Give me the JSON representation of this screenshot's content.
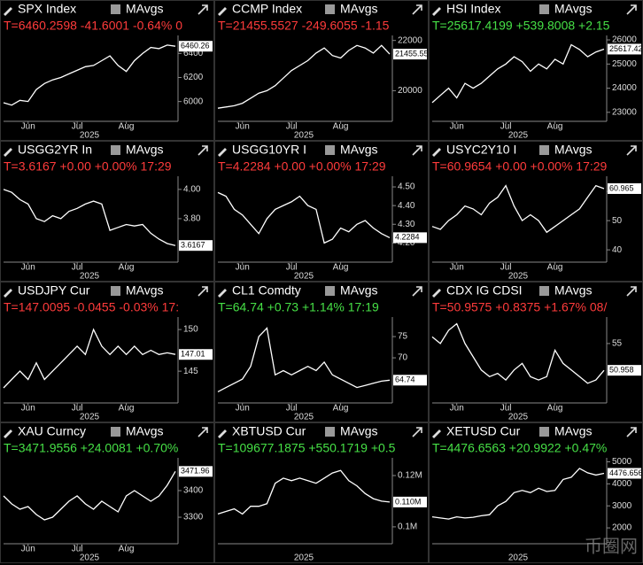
{
  "chart_data": [
    {
      "type": "line",
      "title": "SPX Index",
      "legend_label": "MAvgs",
      "quote": "T=6460.2598 -41.6001 -0.64% 0",
      "quote_color": "#ff3b3b",
      "color": "#ffffff",
      "xlabel": "2025",
      "categories": [
        null,
        null,
        null,
        "Jun",
        null,
        null,
        null,
        null,
        null,
        "Jul",
        null,
        null,
        null,
        null,
        null,
        "Aug",
        null,
        null,
        null,
        null,
        null,
        null
      ],
      "values": [
        5990,
        5970,
        6010,
        6000,
        6100,
        6150,
        6180,
        6200,
        6230,
        6260,
        6290,
        6300,
        6340,
        6380,
        6300,
        6250,
        6340,
        6400,
        6450,
        6440,
        6470,
        6460
      ],
      "ylim": [
        5850,
        6550
      ],
      "yticks": [
        6000,
        6200,
        6400
      ],
      "last_label": "6460.26"
    },
    {
      "type": "line",
      "title": "CCMP Index",
      "legend_label": "MAvgs",
      "quote": "T=21455.5527 -249.6055 -1.15",
      "quote_color": "#ff3b3b",
      "color": "#ffffff",
      "xlabel": "2025",
      "categories": [
        null,
        null,
        null,
        "Jun",
        null,
        null,
        null,
        null,
        null,
        "Jul",
        null,
        null,
        null,
        null,
        null,
        "Aug",
        null,
        null,
        null,
        null,
        null,
        null
      ],
      "values": [
        19300,
        19350,
        19400,
        19500,
        19700,
        19900,
        20000,
        20200,
        20500,
        20800,
        21000,
        21200,
        21500,
        21700,
        21400,
        21300,
        21600,
        21800,
        21700,
        21500,
        21800,
        21455.5527
      ],
      "ylim": [
        18850,
        22200
      ],
      "yticks": [
        {
          "value": 20000,
          "label": "20000"
        },
        {
          "value": 22000,
          "label": "22000"
        }
      ],
      "last_label": "21455.55"
    },
    {
      "type": "line",
      "title": "HSI Index",
      "legend_label": "MAvgs",
      "quote": "T=25617.4199 +539.8008 +2.15",
      "quote_color": "#46e046",
      "color": "#ffffff",
      "xlabel": "2025",
      "categories": [
        null,
        null,
        null,
        "Jun",
        null,
        null,
        null,
        null,
        null,
        "Jul",
        null,
        null,
        null,
        null,
        null,
        "Aug",
        null,
        null,
        null,
        null,
        null,
        null
      ],
      "values": [
        23400,
        23700,
        24000,
        23600,
        24200,
        24000,
        24200,
        24500,
        24800,
        25000,
        25300,
        25100,
        24700,
        25000,
        24800,
        25200,
        25000,
        25800,
        25600,
        25300,
        25500,
        25617.4199
      ],
      "ylim": [
        22700,
        26185
      ],
      "yticks": [
        23000,
        24000,
        25000,
        26000
      ],
      "last_label": "25617.42"
    },
    {
      "type": "line",
      "title": "USGG2YR In",
      "legend_label": "MAvgs",
      "quote": "T=3.6167 +0.00 +0.00% 17:29",
      "quote_color": "#ff3b3b",
      "color": "#ffffff",
      "xlabel": "2025",
      "categories": [
        null,
        null,
        null,
        "Jun",
        null,
        null,
        null,
        null,
        null,
        "Jul",
        null,
        null,
        null,
        null,
        null,
        "Aug",
        null,
        null,
        null,
        null,
        null,
        null
      ],
      "values": [
        4.0,
        3.98,
        3.93,
        3.9,
        3.8,
        3.78,
        3.82,
        3.8,
        3.85,
        3.87,
        3.9,
        3.92,
        3.9,
        3.72,
        3.74,
        3.76,
        3.75,
        3.76,
        3.7,
        3.66,
        3.63,
        3.6167
      ],
      "ylim": [
        3.515,
        4.09
      ],
      "yticks": [
        {
          "value": 3.8,
          "label": "3.80"
        },
        {
          "value": 4,
          "label": "4.00"
        }
      ],
      "last_label": "3.6167"
    },
    {
      "type": "line",
      "title": "USGG10YR I",
      "legend_label": "MAvgs",
      "quote": "T=4.2284 +0.00 +0.00% 17:29",
      "quote_color": "#ff3b3b",
      "color": "#ffffff",
      "xlabel": "2025",
      "categories": [
        null,
        null,
        null,
        "Jun",
        null,
        null,
        null,
        null,
        null,
        "Jul",
        null,
        null,
        null,
        null,
        null,
        "Aug",
        null,
        null,
        null,
        null,
        null,
        null
      ],
      "values": [
        4.47,
        4.45,
        4.38,
        4.35,
        4.3,
        4.25,
        4.33,
        4.38,
        4.4,
        4.42,
        4.45,
        4.4,
        4.38,
        4.2,
        4.22,
        4.28,
        4.26,
        4.3,
        4.32,
        4.28,
        4.25,
        4.2284
      ],
      "ylim": [
        4.107,
        4.557
      ],
      "yticks": [
        {
          "value": 4.2,
          "label": "4.20"
        },
        {
          "value": 4.3,
          "label": "4.30"
        },
        {
          "value": 4.4,
          "label": "4.40"
        },
        {
          "value": 4.5,
          "label": "4.50"
        }
      ],
      "last_label": "4.2284"
    },
    {
      "type": "line",
      "title": "USYC2Y10 I",
      "legend_label": "MAvgs",
      "quote": "T=60.9654 +0.00 +0.00% 17:29",
      "quote_color": "#ff3b3b",
      "color": "#ffffff",
      "xlabel": "2025",
      "categories": [
        null,
        null,
        null,
        "Jun",
        null,
        null,
        null,
        null,
        null,
        "Jul",
        null,
        null,
        null,
        null,
        null,
        "Aug",
        null,
        null,
        null,
        null,
        null,
        null
      ],
      "values": [
        48,
        47,
        50,
        52,
        55,
        54,
        52,
        56,
        58,
        62,
        55,
        50,
        52,
        50,
        46,
        48,
        50,
        52,
        54,
        58,
        62,
        60.9654
      ],
      "ylim": [
        36.4,
        65.2
      ],
      "yticks": [
        40,
        50,
        60
      ],
      "last_label": "60.965"
    },
    {
      "type": "line",
      "title": "USDJPY Cur",
      "legend_label": "MAvgs",
      "quote": "T=147.0095 -0.0455 -0.03% 17:",
      "quote_color": "#ff3b3b",
      "color": "#ffffff",
      "xlabel": "2025",
      "categories": [
        null,
        null,
        null,
        "Jun",
        null,
        null,
        null,
        null,
        null,
        "Jul",
        null,
        null,
        null,
        null,
        null,
        "Aug",
        null,
        null,
        null,
        null,
        null,
        null
      ],
      "values": [
        143,
        144,
        145,
        144,
        146,
        144,
        145,
        146,
        147,
        148,
        147,
        150,
        148,
        147,
        148,
        147,
        148,
        147,
        147.5,
        147,
        147.2,
        147.0095
      ],
      "ylim": [
        141.4,
        151.5
      ],
      "yticks": [
        145,
        150
      ],
      "last_label": "147.01"
    },
    {
      "type": "line",
      "title": "CL1 Comdty",
      "legend_label": "MAvgs",
      "quote": "T=64.74 +0.73 +1.14% 17:19",
      "quote_color": "#46e046",
      "color": "#ffffff",
      "xlabel": "2025",
      "categories": [
        null,
        null,
        null,
        "Jun",
        null,
        null,
        null,
        null,
        null,
        "Jul",
        null,
        null,
        null,
        null,
        null,
        "Aug",
        null,
        null,
        null,
        null,
        null,
        null
      ],
      "values": [
        62,
        63,
        64,
        65,
        68,
        75,
        77,
        66,
        67,
        66,
        67,
        68,
        67,
        69,
        66,
        65,
        64,
        63,
        63.5,
        64,
        64.5,
        64.74
      ],
      "ylim": [
        59.8,
        79.6
      ],
      "yticks": [
        70,
        75
      ],
      "last_label": "64.74"
    },
    {
      "type": "line",
      "title": "CDX IG CDSI",
      "legend_label": "MAvgs",
      "quote": "T=50.9575 +0.8375 +1.67% 08/",
      "quote_color": "#ff3b3b",
      "color": "#ffffff",
      "xlabel": "2025",
      "categories": [
        null,
        null,
        null,
        "Jun",
        null,
        null,
        null,
        null,
        null,
        "Jul",
        null,
        null,
        null,
        null,
        null,
        "Aug",
        null,
        null,
        null,
        null,
        null,
        null
      ],
      "values": [
        56,
        55,
        57,
        58,
        55,
        53,
        51,
        50,
        50.5,
        49.5,
        51,
        52,
        50,
        49.5,
        50,
        54,
        52,
        51,
        50,
        49,
        49.5,
        50.9575
      ],
      "ylim": [
        46.3,
        59
      ],
      "yticks": [
        55
      ],
      "last_label": "50.958"
    },
    {
      "type": "line",
      "title": "XAU Curncy",
      "legend_label": "MAvgs",
      "quote": "T=3471.9556 +24.0081 +0.70%",
      "quote_color": "#46e046",
      "color": "#ffffff",
      "xlabel": "2025",
      "categories": [
        null,
        null,
        null,
        "Jun",
        null,
        null,
        null,
        null,
        null,
        "Jul",
        null,
        null,
        null,
        null,
        null,
        "Aug",
        null,
        null,
        null,
        null,
        null,
        null
      ],
      "values": [
        3380,
        3350,
        3330,
        3340,
        3310,
        3290,
        3300,
        3330,
        3360,
        3380,
        3350,
        3330,
        3360,
        3340,
        3320,
        3380,
        3400,
        3380,
        3360,
        3380,
        3420,
        3471.9556
      ],
      "ylim": [
        3207,
        3523
      ],
      "yticks": [
        3300,
        3400
      ],
      "last_label": "3471.96"
    },
    {
      "type": "line",
      "title": "XBTUSD Cur",
      "legend_label": "MAvgs",
      "quote": "T=109677.1875 +550.1719 +0.5",
      "quote_color": "#46e046",
      "color": "#ffffff",
      "xlabel": "2025",
      "categories": [
        null,
        null,
        null,
        null,
        null,
        null,
        null,
        null,
        null,
        null,
        null,
        null,
        null,
        null,
        null,
        null,
        null,
        null,
        null,
        null,
        null,
        null
      ],
      "values": [
        105000,
        106000,
        107000,
        105000,
        108000,
        108000,
        109000,
        117000,
        119000,
        118000,
        119000,
        118000,
        117000,
        119000,
        121000,
        122000,
        118000,
        116000,
        113000,
        111000,
        110000,
        109677.1875
      ],
      "ylim": [
        94100,
        126900
      ],
      "yticks": [
        {
          "value": 100000,
          "label": "0.1M"
        },
        {
          "value": 120000,
          "label": "0.12M"
        }
      ],
      "last_label": "0.110M"
    },
    {
      "type": "line",
      "title": "XETUSD Cur",
      "legend_label": "MAvgs",
      "quote": "T=4476.6563 +20.9922 +0.47%",
      "quote_color": "#46e046",
      "color": "#ffffff",
      "xlabel": "2025",
      "categories": [
        null,
        null,
        null,
        null,
        null,
        null,
        null,
        null,
        null,
        null,
        null,
        null,
        null,
        null,
        null,
        null,
        null,
        null,
        null,
        null,
        null,
        null
      ],
      "values": [
        2500,
        2450,
        2400,
        2500,
        2450,
        2480,
        2550,
        2600,
        3000,
        3200,
        3600,
        3700,
        3600,
        3800,
        3650,
        3700,
        4200,
        4300,
        4700,
        4500,
        4400,
        4476.6563
      ],
      "ylim": [
        1360,
        5180
      ],
      "yticks": [
        2000,
        3000,
        4000,
        5000
      ],
      "last_label": "4476.656"
    }
  ],
  "watermark": "币圈网"
}
